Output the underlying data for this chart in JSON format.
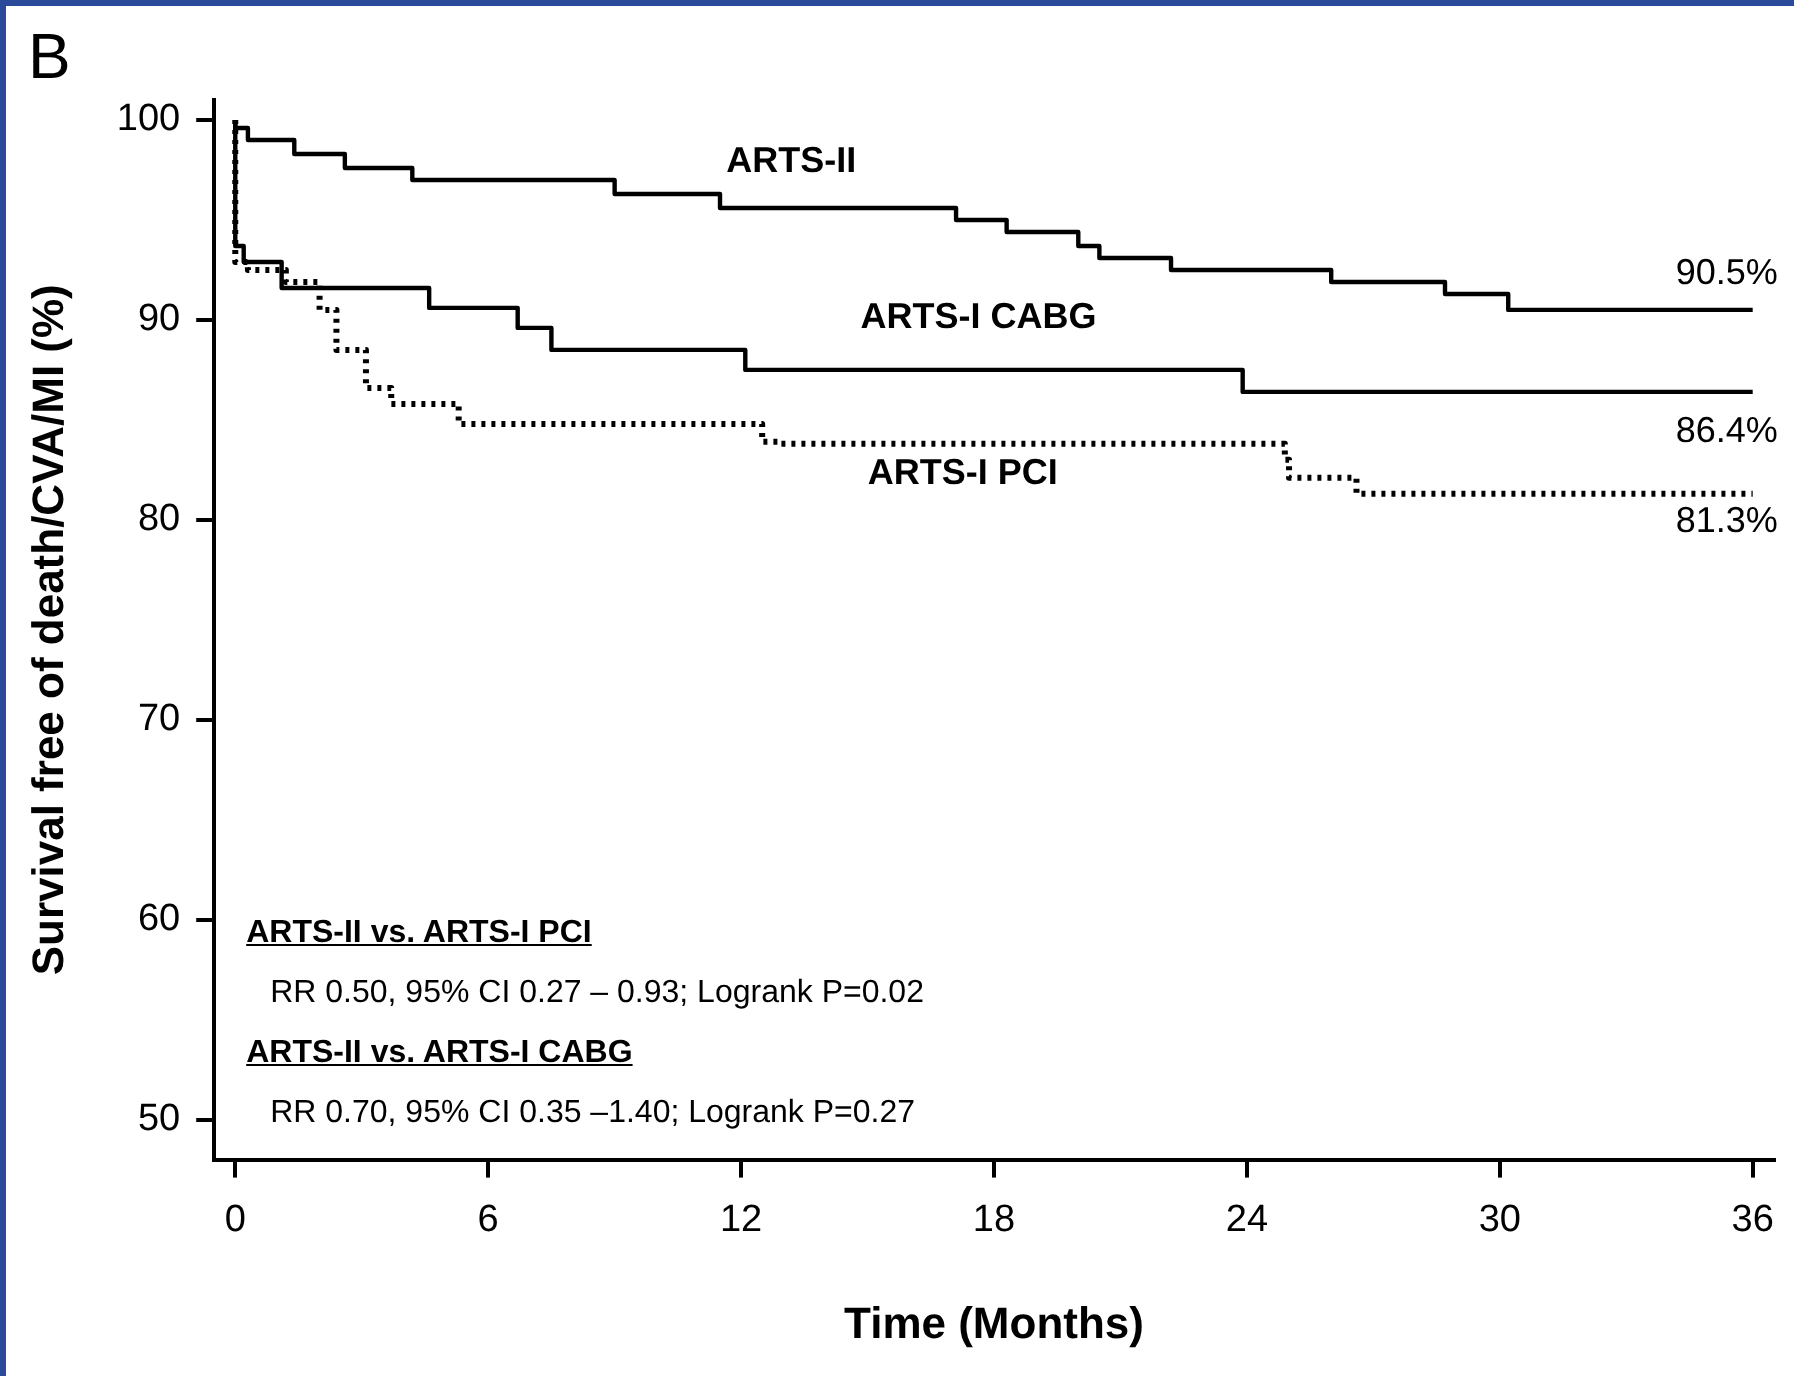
{
  "chart_data": {
    "type": "step",
    "xlabel": "Time (Months)",
    "ylabel": "Survival free of death/CVA/MI (%)",
    "xlim": [
      -0.5,
      36.5
    ],
    "xticks": [
      0,
      6,
      12,
      18,
      24,
      30,
      36
    ],
    "ylim": [
      48,
      101
    ],
    "yticks": [
      50,
      60,
      70,
      80,
      90,
      100
    ],
    "grid": false,
    "legend": false,
    "marker": "none",
    "series": [
      {
        "name": "ARTS-II",
        "color": "#000000",
        "line_style": "solid",
        "x": [
          0,
          0.3,
          1.4,
          2.6,
          4.2,
          9.0,
          11.5,
          17.1,
          18.3,
          20.0,
          20.5,
          22.2,
          26.0,
          28.7,
          30.2,
          33.4,
          36
        ],
        "values": [
          100,
          99.6,
          99.0,
          98.3,
          97.6,
          97.0,
          96.3,
          95.6,
          95.0,
          94.4,
          93.7,
          93.1,
          92.5,
          91.9,
          91.3,
          90.5,
          90.5
        ]
      },
      {
        "name": "ARTS-I CABG",
        "color": "#000000",
        "line_style": "solid",
        "x": [
          0,
          0.2,
          1.1,
          4.6,
          6.7,
          7.5,
          12.1,
          23.9,
          35.4,
          36
        ],
        "values": [
          100,
          93.7,
          92.9,
          91.6,
          90.6,
          89.6,
          88.5,
          87.5,
          86.4,
          86.4
        ]
      },
      {
        "name": "ARTS-I PCI",
        "color": "#000000",
        "line_style": "dotted",
        "x": [
          0,
          0.3,
          1.2,
          2.0,
          2.4,
          3.1,
          3.7,
          5.3,
          12.5,
          12.9,
          24.9,
          25.0,
          26.6,
          31.8,
          36
        ],
        "values": [
          100,
          92.9,
          92.5,
          91.9,
          90.5,
          88.5,
          86.6,
          85.8,
          84.8,
          83.9,
          83.8,
          83.0,
          82.1,
          81.3,
          81.3
        ]
      }
    ],
    "annotations": [
      "B",
      {
        "text": "90.5%",
        "y": 90.5
      },
      {
        "text": "86.4%",
        "y": 86.4
      },
      {
        "text": "81.3%",
        "y": 81.3
      },
      "ARTS-II vs. ARTS-I PCI",
      "RR 0.50, 95% CI 0.27 – 0.93; Logrank P=0.02",
      "ARTS-II vs. ARTS-I CABG",
      "RR 0.70, 95% CI 0.35 –1.40; Logrank P=0.27"
    ]
  }
}
